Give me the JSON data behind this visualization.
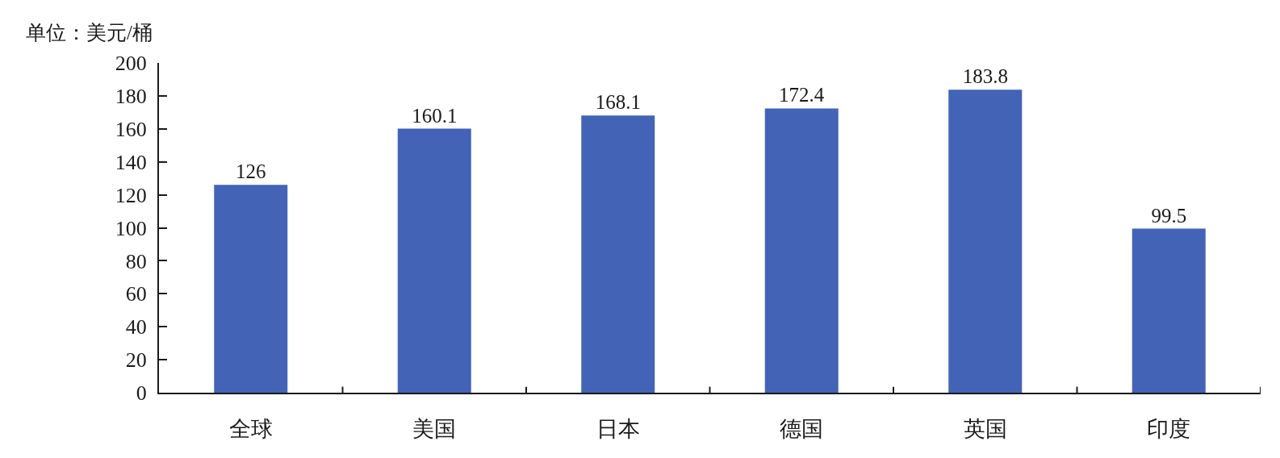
{
  "chart_data": {
    "type": "bar",
    "ylabel": "单位：美元/桶",
    "categories": [
      "全球",
      "美国",
      "日本",
      "德国",
      "英国",
      "印度"
    ],
    "values": [
      126,
      160.1,
      168.1,
      172.4,
      183.8,
      99.5
    ],
    "color": "#4363b6",
    "ylim": [
      0,
      200
    ],
    "yticks": [
      0,
      20,
      40,
      60,
      80,
      100,
      120,
      140,
      160,
      180,
      200
    ],
    "data_labels": true
  }
}
